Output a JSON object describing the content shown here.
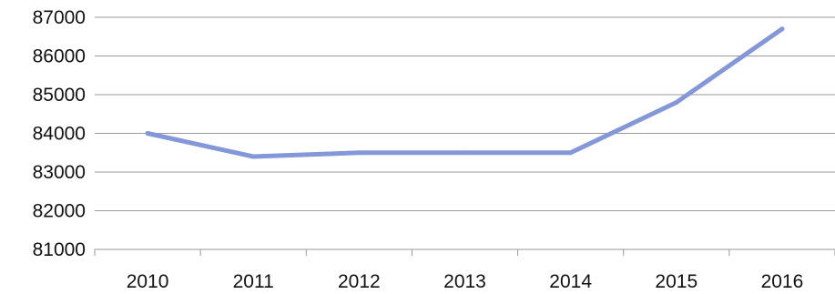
{
  "chart_data": {
    "type": "line",
    "title": "",
    "xlabel": "",
    "ylabel": "",
    "categories": [
      "2010",
      "2011",
      "2012",
      "2013",
      "2014",
      "2015",
      "2016"
    ],
    "series": [
      {
        "values": [
          84000,
          83400,
          83500,
          83500,
          83500,
          84800,
          86700
        ],
        "color": "#8497d8"
      }
    ],
    "ylim": [
      81000,
      87000
    ],
    "yticks": [
      81000,
      82000,
      83000,
      84000,
      85000,
      86000,
      87000
    ],
    "grid": true,
    "legend": "none"
  }
}
